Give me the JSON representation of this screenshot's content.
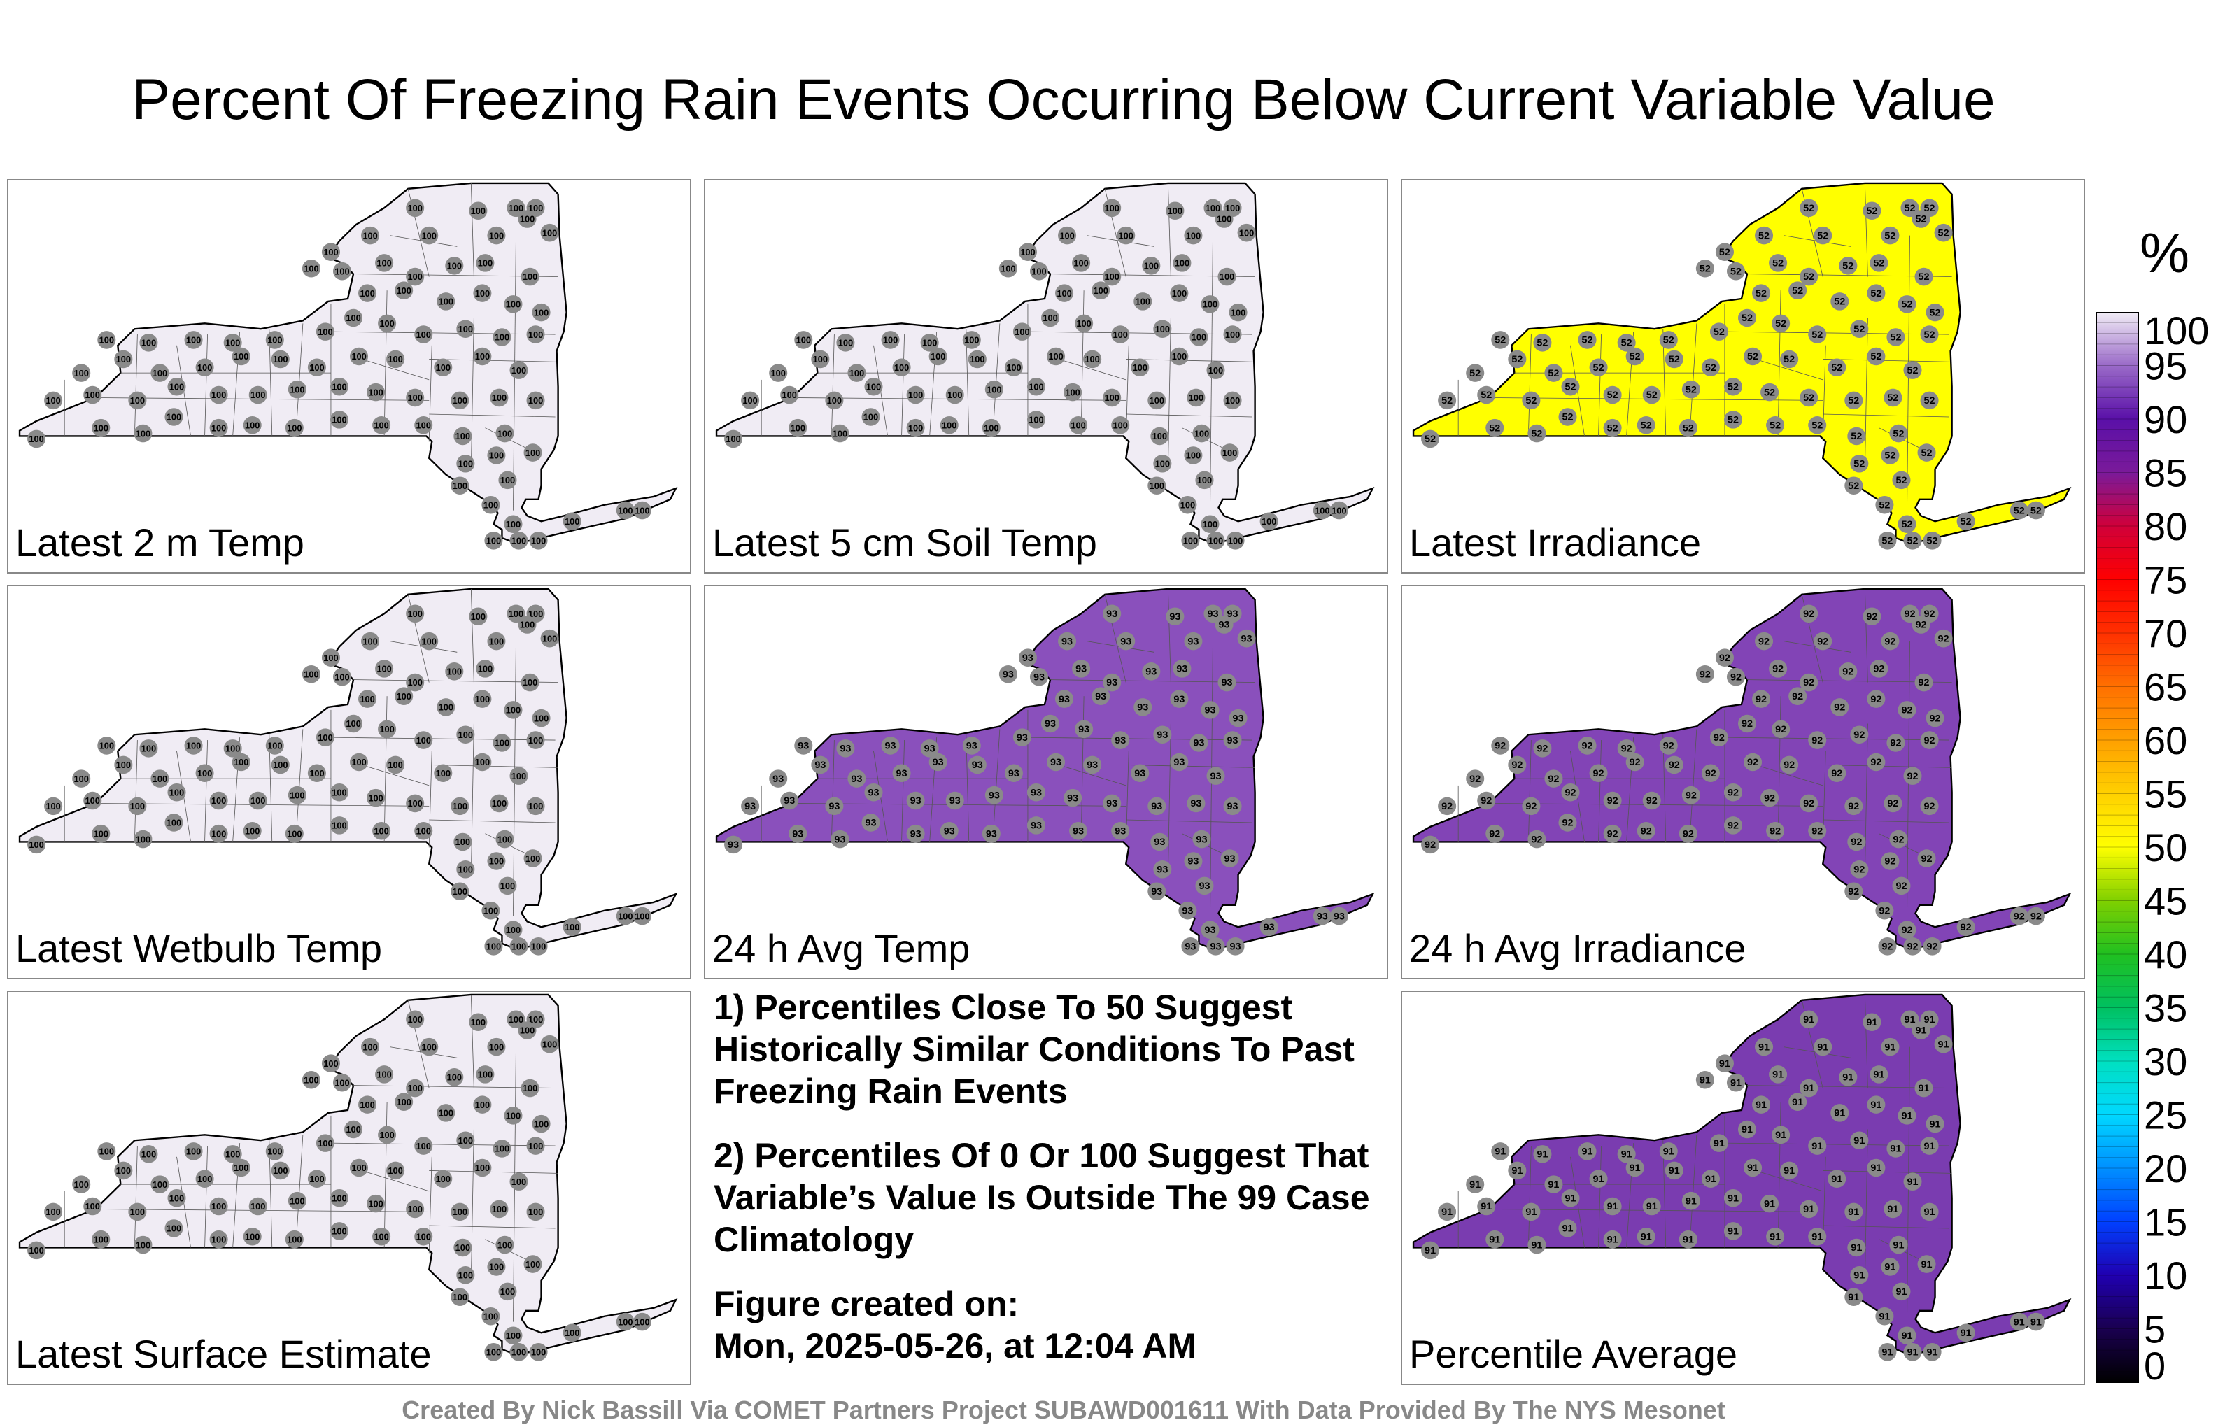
{
  "title": "Percent Of Freezing Rain Events Occurring Below Current Variable Value",
  "colorbar": {
    "unit": "%",
    "ticks": [
      "100",
      "95",
      "90",
      "85",
      "80",
      "75",
      "70",
      "65",
      "60",
      "55",
      "50",
      "45",
      "40",
      "35",
      "30",
      "25",
      "20",
      "15",
      "10",
      "5",
      "0"
    ],
    "stops": [
      {
        "v": 0,
        "c": "#000000"
      },
      {
        "v": 5,
        "c": "#1a0050"
      },
      {
        "v": 10,
        "c": "#2000b0"
      },
      {
        "v": 15,
        "c": "#0040ff"
      },
      {
        "v": 20,
        "c": "#0090ff"
      },
      {
        "v": 25,
        "c": "#00d8ff"
      },
      {
        "v": 30,
        "c": "#00e0c0"
      },
      {
        "v": 35,
        "c": "#00c060"
      },
      {
        "v": 40,
        "c": "#20c020"
      },
      {
        "v": 45,
        "c": "#80d000"
      },
      {
        "v": 50,
        "c": "#ffff00"
      },
      {
        "v": 55,
        "c": "#ffd000"
      },
      {
        "v": 60,
        "c": "#ffa000"
      },
      {
        "v": 65,
        "c": "#ff7000"
      },
      {
        "v": 70,
        "c": "#ff3000"
      },
      {
        "v": 75,
        "c": "#ff0000"
      },
      {
        "v": 80,
        "c": "#d0003a"
      },
      {
        "v": 85,
        "c": "#7a1a9a"
      },
      {
        "v": 90,
        "c": "#5a10a8"
      },
      {
        "v": 95,
        "c": "#9a6ac8"
      },
      {
        "v": 100,
        "c": "#f2eef6"
      }
    ]
  },
  "panels": [
    {
      "label": "Latest 2 m Temp",
      "value": 100,
      "fill": "#f0ecf4"
    },
    {
      "label": "Latest 5 cm Soil Temp",
      "value": 100,
      "fill": "#f0ecf4"
    },
    {
      "label": "Latest Irradiance",
      "value": 52,
      "fill": "#ffff00"
    },
    {
      "label": "Latest Wetbulb Temp",
      "value": 100,
      "fill": "#f0ecf4"
    },
    {
      "label": "24 h Avg Temp",
      "value": 93,
      "fill": "#8a50bc"
    },
    {
      "label": "24 h Avg Irradiance",
      "value": 92,
      "fill": "#8244b6"
    },
    {
      "label": "Latest Surface Estimate",
      "value": 100,
      "fill": "#f0ecf4"
    },
    {
      "label": "Percentile Average",
      "value": 91,
      "fill": "#7a3cb0"
    }
  ],
  "notes": {
    "note1": "1) Percentiles Close To 50 Suggest Historically Similar Conditions To Past Freezing Rain Events",
    "note2": "2) Percentiles Of 0 Or 100 Suggest That Variable’s Value Is Outside The 99 Case Climatology",
    "created_label": "Figure created on:",
    "created_date": "Mon, 2025-05-26, at 12:04 AM"
  },
  "credit": "Created By Nick Bassill Via COMET Partners Project SUBAWD001611 With Data Provided By The NYS Mesonet"
}
